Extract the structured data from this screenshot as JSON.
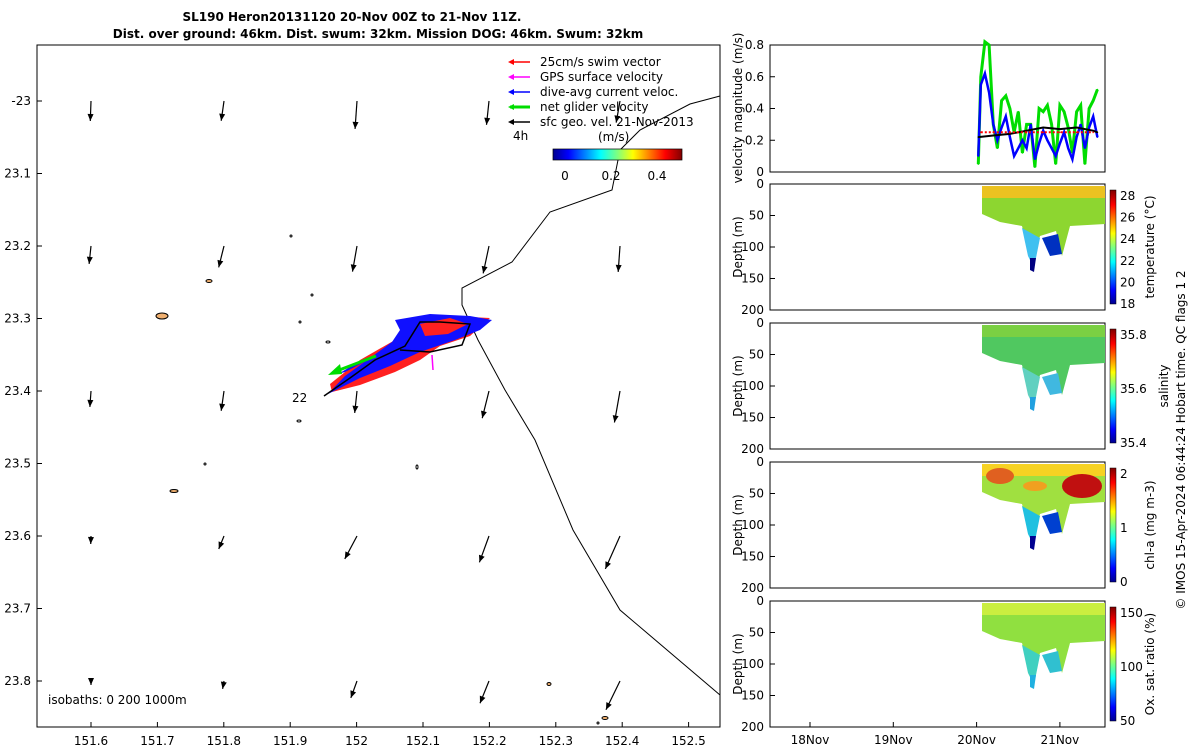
{
  "figure": {
    "title_line1": "SL190 Heron20131120 20-Nov 00Z to 21-Nov 11Z.",
    "title_line2": "Dist. over ground: 46km. Dist. swum: 32km. Mission DOG: 46km. Swum: 32km",
    "credit": "© IMOS 15-Apr-2024 06:44:24 Hobart time. QC flags 1  2"
  },
  "map": {
    "legend": [
      {
        "label": "25cm/s swim vector",
        "color": "#ff0000"
      },
      {
        "label": "GPS surface velocity",
        "color": "#ff00ff"
      },
      {
        "label": "dive-avg current veloc.",
        "color": "#0000ff"
      },
      {
        "label": "net glider velocity",
        "color": "#00dd00"
      },
      {
        "label": "sfc geo. vel. 21-Nov-2013",
        "color": "#000000"
      }
    ],
    "time_label": "4h",
    "colorbar": {
      "unit": "(m/s)",
      "ticks": [
        "0",
        "0.2",
        "0.4"
      ]
    },
    "isobaths": "isobaths: 0   200  1000m",
    "track_label": "22",
    "x_ticks": [
      "151.6",
      "151.7",
      "151.8",
      "151.9",
      "152",
      "152.1",
      "152.2",
      "152.3",
      "152.4",
      "152.5"
    ],
    "y_ticks": [
      "-23",
      "23.1",
      "23.2",
      "23.3",
      "23.4",
      "23.5",
      "23.6",
      "23.7",
      "23.8"
    ]
  },
  "panels": {
    "velocity": {
      "ylabel": "velocity magnitude (m/s)",
      "y_ticks": [
        "0",
        "0.2",
        "0.4",
        "0.6",
        "0.8"
      ]
    },
    "depth_ylabel": "Depth (m)",
    "depth_ticks": [
      "0",
      "50",
      "100",
      "150",
      "200"
    ],
    "temperature": {
      "label": "temperature (°C)",
      "cbar_ticks": [
        "28",
        "26",
        "24",
        "22",
        "20",
        "18"
      ]
    },
    "salinity": {
      "label": "salinity",
      "cbar_ticks": [
        "35.8",
        "35.6",
        "35.4"
      ]
    },
    "chla": {
      "label": "chl-a (mg m-3)",
      "cbar_ticks": [
        "2",
        "1",
        "0"
      ]
    },
    "oxygen": {
      "label": "Ox. sat. ratio (%)",
      "cbar_ticks": [
        "150",
        "100",
        "50"
      ]
    },
    "x_ticks": [
      "18Nov",
      "19Nov",
      "20Nov",
      "21Nov"
    ]
  },
  "chart_data": [
    {
      "type": "line",
      "title": "",
      "ylabel": "velocity magnitude (m/s)",
      "xlabel": "",
      "x_tick_labels": [
        "18Nov",
        "19Nov",
        "20Nov",
        "21Nov"
      ],
      "ylim": [
        0,
        0.8
      ],
      "series": [
        {
          "color": "#00dd00",
          "x": [
            20.02,
            20.05,
            20.1,
            20.15,
            20.2,
            20.25,
            20.3,
            20.35,
            20.4,
            20.45,
            20.5,
            20.55,
            20.6,
            20.65,
            20.7,
            20.75,
            20.8,
            20.85,
            20.9,
            20.95,
            21.0,
            21.05,
            21.1,
            21.15,
            21.2,
            21.25,
            21.3,
            21.35,
            21.4,
            21.45
          ],
          "values": [
            0.05,
            0.6,
            0.82,
            0.8,
            0.3,
            0.15,
            0.45,
            0.48,
            0.4,
            0.25,
            0.38,
            0.12,
            0.3,
            0.3,
            0.03,
            0.4,
            0.38,
            0.42,
            0.3,
            0.05,
            0.42,
            0.38,
            0.28,
            0.12,
            0.38,
            0.42,
            0.05,
            0.4,
            0.45,
            0.52
          ]
        },
        {
          "color": "#0000ff",
          "x": [
            20.02,
            20.05,
            20.1,
            20.15,
            20.2,
            20.25,
            20.3,
            20.35,
            20.4,
            20.45,
            20.5,
            20.55,
            20.6,
            20.65,
            20.7,
            20.75,
            20.8,
            20.85,
            20.9,
            20.95,
            21.0,
            21.05,
            21.1,
            21.15,
            21.2,
            21.25,
            21.3,
            21.35,
            21.4,
            21.45
          ],
          "values": [
            0.1,
            0.55,
            0.62,
            0.5,
            0.3,
            0.2,
            0.28,
            0.35,
            0.22,
            0.1,
            0.15,
            0.2,
            0.15,
            0.3,
            0.08,
            0.18,
            0.26,
            0.2,
            0.15,
            0.1,
            0.18,
            0.25,
            0.15,
            0.08,
            0.22,
            0.3,
            0.15,
            0.28,
            0.35,
            0.22
          ]
        },
        {
          "color": "#000000",
          "x": [
            20.02,
            20.2,
            20.4,
            20.6,
            20.8,
            21.0,
            21.2,
            21.4,
            21.45
          ],
          "values": [
            0.22,
            0.23,
            0.24,
            0.26,
            0.28,
            0.27,
            0.28,
            0.26,
            0.25
          ]
        },
        {
          "color": "#ff0000",
          "x": [
            20.05,
            20.2,
            20.4,
            20.6,
            20.8,
            21.0,
            21.2,
            21.4
          ],
          "values": [
            0.25,
            0.25,
            0.25,
            0.25,
            0.25,
            0.25,
            0.25,
            0.25
          ]
        }
      ]
    }
  ]
}
